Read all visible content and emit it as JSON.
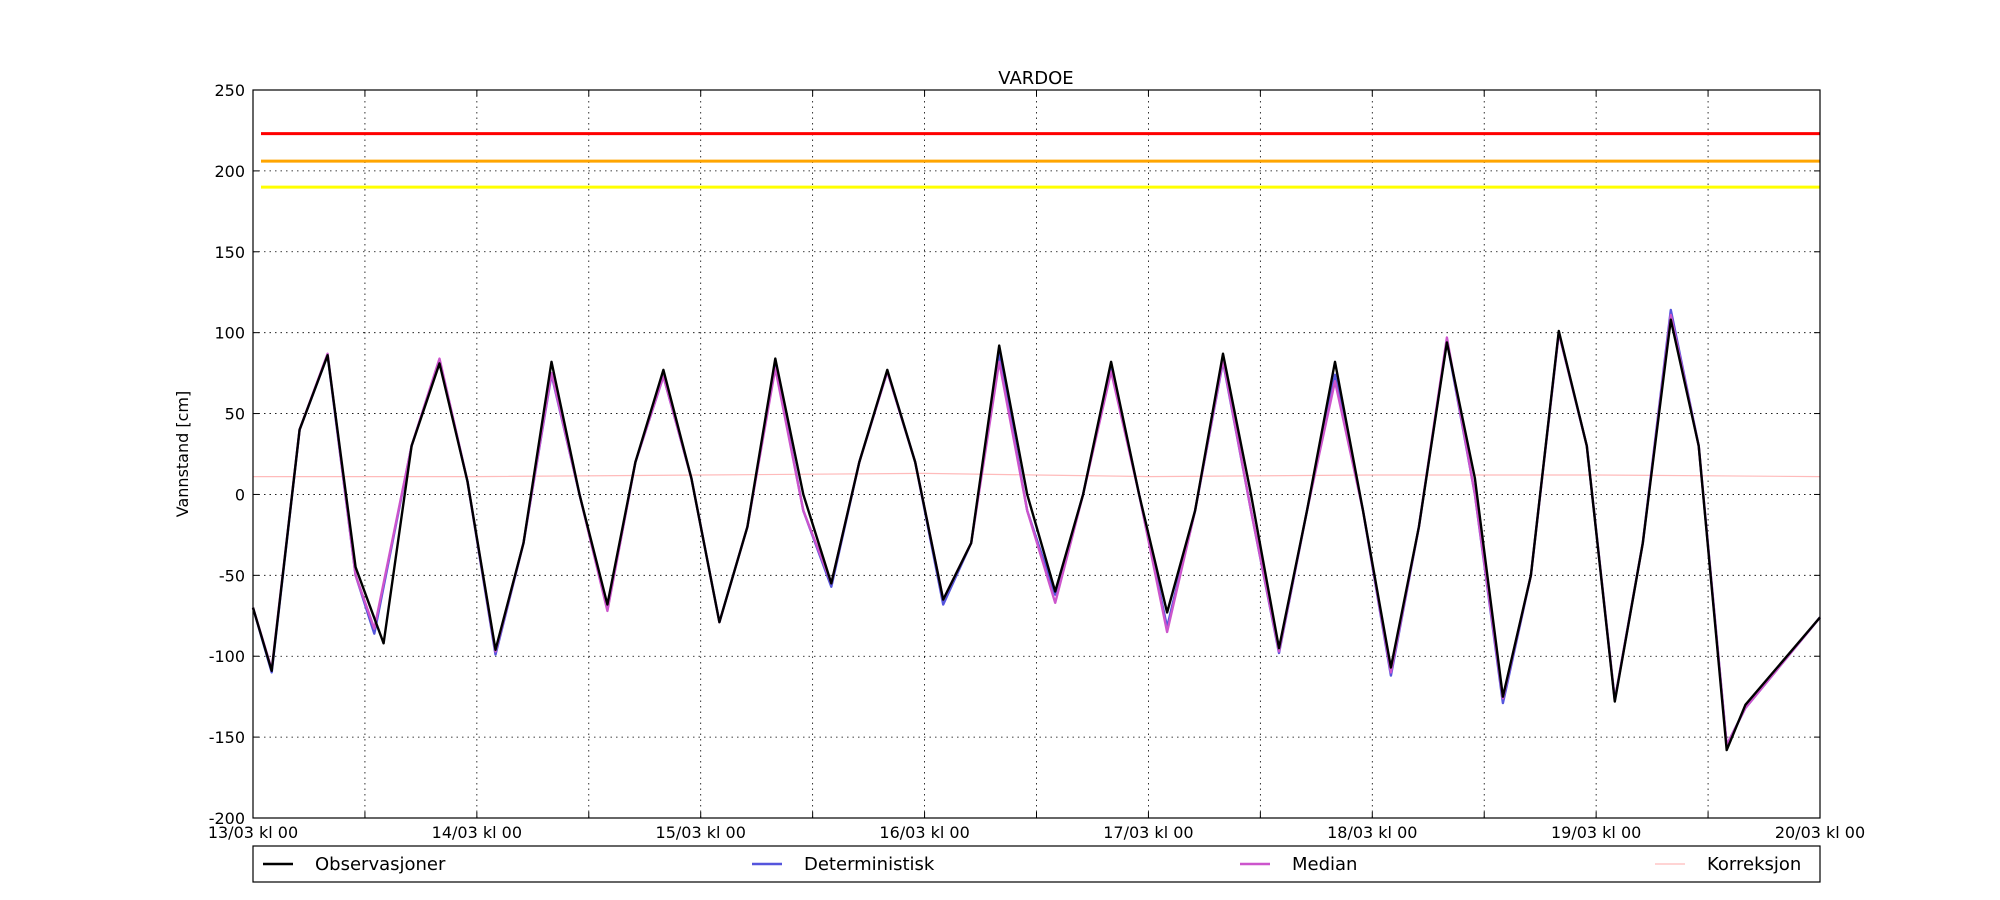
{
  "chart_data": {
    "type": "line",
    "title": "VARDOE",
    "xlabel": "",
    "ylabel": "Vannstand [cm]",
    "ylim": [
      -200,
      250
    ],
    "xlim": [
      "2024-03-13T00:00",
      "2024-03-20T00:00"
    ],
    "grid": true,
    "legend_position": "bottom",
    "x_ticks": [
      "13/03 kl 00",
      "",
      "14/03 kl 00",
      "",
      "15/03 kl 00",
      "",
      "16/03 kl 00",
      "",
      "17/03 kl 00",
      "",
      "18/03 kl 00",
      "",
      "19/03 kl 00",
      "",
      "20/03 kl 00"
    ],
    "y_ticks": [
      250,
      200,
      150,
      100,
      50,
      0,
      -50,
      -100,
      -150,
      -200
    ],
    "thresholds": [
      {
        "value": 223,
        "color": "#ff0000"
      },
      {
        "value": 206,
        "color": "#ffa500"
      },
      {
        "value": 190,
        "color": "#ffff00"
      }
    ],
    "series": [
      {
        "name": "Observasjoner",
        "color": "#000000",
        "points": [
          [
            "2024-03-13T00:00",
            -70
          ],
          [
            "2024-03-13T02:00",
            -109
          ],
          [
            "2024-03-13T05:00",
            40
          ],
          [
            "2024-03-13T08:00",
            86
          ],
          [
            "2024-03-13T11:00",
            -45
          ],
          [
            "2024-03-13T14:00",
            -92
          ],
          [
            "2024-03-13T17:00",
            30
          ],
          [
            "2024-03-13T20:00",
            81
          ],
          [
            "2024-03-13T23:00",
            8
          ],
          [
            "2024-03-14T02:00",
            -96
          ],
          [
            "2024-03-14T05:00",
            -30
          ],
          [
            "2024-03-14T08:00",
            82
          ],
          [
            "2024-03-14T11:00",
            0
          ],
          [
            "2024-03-14T14:00",
            -68
          ],
          [
            "2024-03-14T17:00",
            20
          ],
          [
            "2024-03-14T20:00",
            77
          ],
          [
            "2024-03-14T23:00",
            10
          ],
          [
            "2024-03-15T02:00",
            -79
          ],
          [
            "2024-03-15T05:00",
            -20
          ],
          [
            "2024-03-15T08:00",
            84
          ],
          [
            "2024-03-15T11:00",
            0
          ],
          [
            "2024-03-15T14:00",
            -55
          ],
          [
            "2024-03-15T17:00",
            20
          ],
          [
            "2024-03-15T20:00",
            77
          ],
          [
            "2024-03-15T23:00",
            20
          ],
          [
            "2024-03-16T02:00",
            -65
          ],
          [
            "2024-03-16T05:00",
            -30
          ],
          [
            "2024-03-16T08:00",
            92
          ],
          [
            "2024-03-16T11:00",
            0
          ],
          [
            "2024-03-16T14:00",
            -60
          ],
          [
            "2024-03-16T17:00",
            0
          ],
          [
            "2024-03-16T20:00",
            82
          ],
          [
            "2024-03-16T23:00",
            0
          ],
          [
            "2024-03-17T02:00",
            -73
          ],
          [
            "2024-03-17T05:00",
            -10
          ],
          [
            "2024-03-17T08:00",
            87
          ],
          [
            "2024-03-17T11:00",
            0
          ],
          [
            "2024-03-17T14:00",
            -95
          ],
          [
            "2024-03-17T17:00",
            -10
          ],
          [
            "2024-03-17T20:00",
            82
          ],
          [
            "2024-03-17T23:00",
            -10
          ],
          [
            "2024-03-18T02:00",
            -107
          ],
          [
            "2024-03-18T05:00",
            -20
          ],
          [
            "2024-03-18T08:00",
            94
          ],
          [
            "2024-03-18T11:00",
            10
          ],
          [
            "2024-03-18T14:00",
            -125
          ],
          [
            "2024-03-18T17:00",
            -50
          ],
          [
            "2024-03-18T20:00",
            101
          ],
          [
            "2024-03-18T23:00",
            30
          ],
          [
            "2024-03-19T02:00",
            -128
          ],
          [
            "2024-03-19T05:00",
            -30
          ],
          [
            "2024-03-19T08:00",
            108
          ],
          [
            "2024-03-19T11:00",
            30
          ],
          [
            "2024-03-19T14:00",
            -158
          ],
          [
            "2024-03-19T16:00",
            -130
          ],
          [
            "2024-03-20T00:00",
            -76
          ]
        ]
      },
      {
        "name": "Deterministisk",
        "color": "#5555dd",
        "points": [
          [
            "2024-03-13T00:00",
            -70
          ],
          [
            "2024-03-13T02:00",
            -110
          ],
          [
            "2024-03-13T05:00",
            40
          ],
          [
            "2024-03-13T08:00",
            86
          ],
          [
            "2024-03-13T11:00",
            -50
          ],
          [
            "2024-03-13T13:00",
            -86
          ],
          [
            "2024-03-13T17:00",
            30
          ],
          [
            "2024-03-13T20:00",
            83
          ],
          [
            "2024-03-13T23:00",
            8
          ],
          [
            "2024-03-14T02:00",
            -99
          ],
          [
            "2024-03-14T05:00",
            -30
          ],
          [
            "2024-03-14T08:00",
            74
          ],
          [
            "2024-03-14T11:00",
            0
          ],
          [
            "2024-03-14T14:00",
            -71
          ],
          [
            "2024-03-14T17:00",
            20
          ],
          [
            "2024-03-14T20:00",
            73
          ],
          [
            "2024-03-14T23:00",
            10
          ],
          [
            "2024-03-15T02:00",
            -79
          ],
          [
            "2024-03-15T05:00",
            -20
          ],
          [
            "2024-03-15T08:00",
            80
          ],
          [
            "2024-03-15T11:00",
            -10
          ],
          [
            "2024-03-15T14:00",
            -57
          ],
          [
            "2024-03-15T17:00",
            20
          ],
          [
            "2024-03-15T20:00",
            76
          ],
          [
            "2024-03-15T23:00",
            20
          ],
          [
            "2024-03-16T02:00",
            -68
          ],
          [
            "2024-03-16T05:00",
            -30
          ],
          [
            "2024-03-16T08:00",
            87
          ],
          [
            "2024-03-16T11:00",
            -10
          ],
          [
            "2024-03-16T14:00",
            -62
          ],
          [
            "2024-03-16T17:00",
            0
          ],
          [
            "2024-03-16T20:00",
            80
          ],
          [
            "2024-03-16T23:00",
            0
          ],
          [
            "2024-03-17T02:00",
            -82
          ],
          [
            "2024-03-17T05:00",
            -10
          ],
          [
            "2024-03-17T08:00",
            82
          ],
          [
            "2024-03-17T11:00",
            -10
          ],
          [
            "2024-03-17T14:00",
            -98
          ],
          [
            "2024-03-17T17:00",
            -10
          ],
          [
            "2024-03-17T20:00",
            74
          ],
          [
            "2024-03-17T23:00",
            -10
          ],
          [
            "2024-03-18T02:00",
            -112
          ],
          [
            "2024-03-18T05:00",
            -20
          ],
          [
            "2024-03-18T08:00",
            95
          ],
          [
            "2024-03-18T11:00",
            0
          ],
          [
            "2024-03-18T14:00",
            -129
          ],
          [
            "2024-03-18T17:00",
            -50
          ],
          [
            "2024-03-18T20:00",
            100
          ],
          [
            "2024-03-18T23:00",
            30
          ],
          [
            "2024-03-19T02:00",
            -127
          ],
          [
            "2024-03-19T05:00",
            -30
          ],
          [
            "2024-03-19T08:00",
            114
          ],
          [
            "2024-03-19T11:00",
            30
          ],
          [
            "2024-03-19T14:00",
            -155
          ],
          [
            "2024-03-19T16:00",
            -132
          ],
          [
            "2024-03-20T00:00",
            -76
          ]
        ]
      },
      {
        "name": "Median",
        "color": "#cc55cc",
        "points": [
          [
            "2024-03-13T00:00",
            -70
          ],
          [
            "2024-03-13T02:00",
            -108
          ],
          [
            "2024-03-13T05:00",
            40
          ],
          [
            "2024-03-13T08:00",
            87
          ],
          [
            "2024-03-13T11:00",
            -50
          ],
          [
            "2024-03-13T13:00",
            -83
          ],
          [
            "2024-03-13T17:00",
            30
          ],
          [
            "2024-03-13T20:00",
            84
          ],
          [
            "2024-03-13T23:00",
            8
          ],
          [
            "2024-03-14T02:00",
            -97
          ],
          [
            "2024-03-14T05:00",
            -30
          ],
          [
            "2024-03-14T08:00",
            75
          ],
          [
            "2024-03-14T11:00",
            0
          ],
          [
            "2024-03-14T14:00",
            -72
          ],
          [
            "2024-03-14T17:00",
            20
          ],
          [
            "2024-03-14T20:00",
            73
          ],
          [
            "2024-03-14T23:00",
            10
          ],
          [
            "2024-03-15T02:00",
            -79
          ],
          [
            "2024-03-15T05:00",
            -20
          ],
          [
            "2024-03-15T08:00",
            78
          ],
          [
            "2024-03-15T11:00",
            -10
          ],
          [
            "2024-03-15T14:00",
            -55
          ],
          [
            "2024-03-15T17:00",
            20
          ],
          [
            "2024-03-15T20:00",
            76
          ],
          [
            "2024-03-15T23:00",
            20
          ],
          [
            "2024-03-16T02:00",
            -65
          ],
          [
            "2024-03-16T05:00",
            -30
          ],
          [
            "2024-03-16T08:00",
            82
          ],
          [
            "2024-03-16T11:00",
            -10
          ],
          [
            "2024-03-16T14:00",
            -67
          ],
          [
            "2024-03-16T17:00",
            0
          ],
          [
            "2024-03-16T20:00",
            76
          ],
          [
            "2024-03-16T23:00",
            0
          ],
          [
            "2024-03-17T02:00",
            -85
          ],
          [
            "2024-03-17T05:00",
            -10
          ],
          [
            "2024-03-17T08:00",
            83
          ],
          [
            "2024-03-17T11:00",
            -10
          ],
          [
            "2024-03-17T14:00",
            -97
          ],
          [
            "2024-03-17T17:00",
            -10
          ],
          [
            "2024-03-17T20:00",
            70
          ],
          [
            "2024-03-17T23:00",
            -10
          ],
          [
            "2024-03-18T02:00",
            -110
          ],
          [
            "2024-03-18T05:00",
            -20
          ],
          [
            "2024-03-18T08:00",
            97
          ],
          [
            "2024-03-18T11:00",
            0
          ],
          [
            "2024-03-18T14:00",
            -126
          ],
          [
            "2024-03-18T17:00",
            -50
          ],
          [
            "2024-03-18T20:00",
            100
          ],
          [
            "2024-03-18T23:00",
            30
          ],
          [
            "2024-03-19T02:00",
            -127
          ],
          [
            "2024-03-19T05:00",
            -30
          ],
          [
            "2024-03-19T08:00",
            111
          ],
          [
            "2024-03-19T11:00",
            30
          ],
          [
            "2024-03-19T14:00",
            -155
          ],
          [
            "2024-03-19T16:00",
            -132
          ],
          [
            "2024-03-20T00:00",
            -76
          ]
        ]
      },
      {
        "name": "Korreksjon",
        "color": "#ffbbbb",
        "points": [
          [
            "2024-03-13T00:00",
            11
          ],
          [
            "2024-03-14T00:00",
            11
          ],
          [
            "2024-03-15T00:00",
            12
          ],
          [
            "2024-03-16T00:00",
            13
          ],
          [
            "2024-03-16T12:00",
            12
          ],
          [
            "2024-03-17T00:00",
            11
          ],
          [
            "2024-03-18T00:00",
            12
          ],
          [
            "2024-03-19T00:00",
            12
          ],
          [
            "2024-03-20T00:00",
            11
          ]
        ]
      }
    ]
  }
}
